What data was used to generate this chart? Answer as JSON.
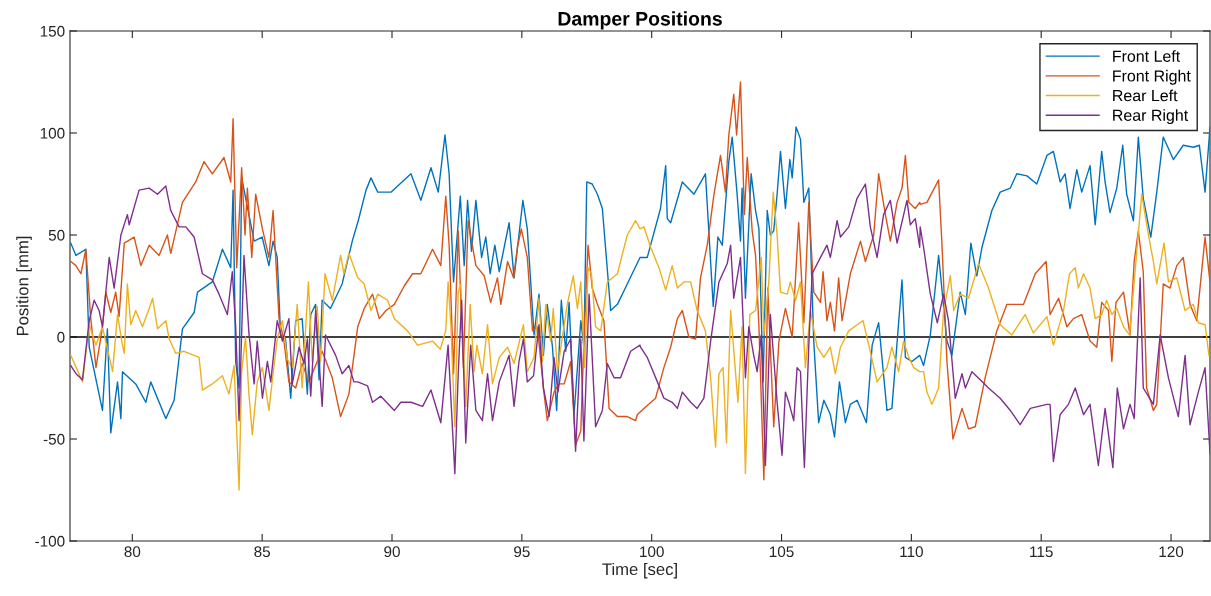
{
  "chart_data": {
    "type": "line",
    "title": "Damper Positions",
    "xlabel": "Time [sec]",
    "ylabel": "Position [mm]",
    "xlim": [
      77.6,
      121.5
    ],
    "ylim": [
      -100,
      150
    ],
    "xticks": [
      80,
      85,
      90,
      95,
      100,
      105,
      110,
      115,
      120
    ],
    "yticks": [
      -100,
      -50,
      0,
      50,
      100,
      150
    ],
    "grid": false,
    "legend": "top right",
    "marker": "none",
    "line_style": "solid",
    "ref_lines": [
      {
        "axis": "y",
        "value": 0,
        "color": "#000000"
      }
    ],
    "series": [
      {
        "name": "Front Left",
        "color": "#0072bd",
        "x": [
          77.63,
          77.83,
          78.21,
          78.34,
          78.85,
          79.04,
          79.17,
          79.43,
          79.56,
          79.62,
          80.13,
          80.52,
          80.71,
          81.29,
          81.61,
          81.93,
          82.38,
          82.51,
          83.08,
          83.47,
          83.79,
          83.88,
          83.98,
          84.11,
          84.21,
          84.49,
          84.69,
          85.0,
          85.26,
          85.42,
          85.58,
          85.71,
          85.9,
          86.1,
          86.29,
          86.54,
          86.74,
          86.87,
          87.06,
          87.19,
          87.31,
          87.63,
          88.08,
          88.47,
          88.7,
          89.0,
          89.19,
          89.45,
          89.96,
          90.73,
          91.11,
          91.5,
          91.78,
          92.04,
          92.2,
          92.37,
          92.63,
          92.78,
          92.91,
          93.06,
          93.23,
          93.45,
          93.61,
          93.78,
          93.96,
          94.13,
          94.51,
          94.7,
          95.04,
          95.21,
          95.47,
          95.66,
          95.83,
          95.98,
          96.18,
          96.34,
          96.52,
          96.69,
          96.82,
          97.01,
          97.27,
          97.39,
          97.5,
          97.71,
          97.91,
          98.1,
          98.42,
          98.68,
          99.06,
          99.55,
          99.83,
          100.34,
          100.54,
          100.6,
          100.73,
          101.18,
          101.63,
          102.07,
          102.37,
          102.55,
          102.72,
          102.97,
          103.1,
          103.29,
          103.42,
          103.48,
          103.61,
          103.83,
          104.0,
          104.13,
          104.29,
          104.45,
          104.57,
          104.7,
          104.83,
          104.96,
          105.15,
          105.32,
          105.41,
          105.56,
          105.73,
          105.86,
          106.05,
          106.24,
          106.43,
          106.63,
          106.88,
          107.04,
          107.23,
          107.46,
          107.65,
          107.91,
          108.27,
          108.49,
          108.74,
          109.06,
          109.25,
          109.64,
          109.77,
          110.02,
          110.32,
          110.47,
          110.73,
          111.05,
          111.37,
          111.56,
          111.88,
          112.08,
          112.29,
          112.52,
          112.72,
          113.1,
          113.42,
          113.81,
          114.06,
          114.45,
          114.83,
          115.22,
          115.47,
          115.73,
          115.92,
          116.11,
          116.37,
          116.56,
          116.88,
          117.08,
          117.33,
          117.46,
          117.65,
          117.91,
          118.14,
          118.29,
          118.55,
          118.74,
          118.93,
          119.22,
          119.45,
          119.7,
          120.09,
          120.47,
          120.86,
          121.09,
          121.31,
          121.5
        ],
        "values": [
          46,
          40,
          43,
          -5,
          -36,
          4,
          -47,
          -22,
          -40,
          -17,
          -23,
          -32,
          -22,
          -40,
          -31,
          4,
          12,
          22,
          27,
          43,
          34,
          72,
          -12,
          -25,
          78,
          60,
          47,
          49,
          35,
          47,
          39,
          1,
          -1,
          -30,
          8,
          9,
          -28,
          11,
          16,
          -21,
          18,
          14,
          26,
          47,
          57,
          72,
          78,
          71,
          71,
          80,
          67,
          83,
          71,
          99,
          80,
          27,
          69,
          35,
          67,
          42,
          67,
          39,
          49,
          31,
          45,
          32,
          56,
          29,
          67,
          53,
          1,
          21,
          -9,
          16,
          -5,
          -36,
          18,
          -7,
          17,
          -38,
          8,
          -5,
          76,
          75,
          70,
          63,
          13,
          16,
          26,
          39,
          39,
          63,
          84,
          58,
          56,
          76,
          70,
          80,
          15,
          49,
          45,
          86,
          98,
          70,
          47,
          73,
          19,
          80,
          62,
          53,
          -22,
          62,
          50,
          52,
          70,
          91,
          63,
          87,
          78,
          103,
          97,
          66,
          73,
          -2,
          -42,
          -31,
          -38,
          -49,
          -22,
          -42,
          -33,
          -31,
          -42,
          -4,
          7,
          -36,
          -35,
          28,
          -10,
          -12,
          -9,
          -14,
          1,
          40,
          -2,
          -9,
          22,
          11,
          46,
          30,
          44,
          62,
          71,
          73,
          80,
          79,
          75,
          89,
          91,
          76,
          80,
          63,
          82,
          71,
          84,
          55,
          91,
          76,
          61,
          73,
          94,
          70,
          57,
          98,
          68,
          49,
          71,
          98,
          87,
          94,
          93,
          94,
          71,
          103
        ]
      },
      {
        "name": "Front Right",
        "color": "#d95319",
        "x": [
          77.63,
          77.83,
          78.02,
          78.21,
          78.4,
          78.6,
          78.85,
          78.98,
          79.17,
          79.36,
          79.49,
          79.69,
          80.07,
          80.33,
          80.65,
          81.03,
          81.35,
          81.48,
          81.93,
          82.44,
          82.76,
          83.08,
          83.53,
          83.79,
          83.88,
          84.02,
          84.21,
          84.34,
          84.43,
          84.6,
          84.75,
          85.01,
          85.26,
          85.42,
          85.65,
          85.84,
          86.03,
          86.29,
          86.54,
          86.8,
          87.12,
          87.31,
          87.7,
          88.02,
          88.34,
          88.68,
          88.93,
          89.25,
          89.51,
          89.77,
          90.09,
          90.47,
          90.79,
          91.11,
          91.56,
          91.88,
          92.07,
          92.2,
          92.37,
          92.55,
          92.75,
          92.93,
          93.23,
          93.55,
          93.8,
          94.06,
          94.19,
          94.45,
          94.68,
          94.83,
          94.98,
          95.21,
          95.41,
          95.6,
          95.83,
          95.98,
          96.24,
          96.43,
          96.63,
          96.88,
          97.07,
          97.27,
          97.39,
          97.55,
          97.71,
          97.91,
          98.16,
          98.36,
          98.68,
          99.06,
          99.38,
          99.45,
          99.7,
          100.15,
          100.47,
          100.73,
          100.99,
          101.18,
          101.43,
          101.69,
          101.88,
          102.14,
          102.4,
          102.65,
          102.84,
          102.97,
          103.16,
          103.27,
          103.42,
          103.57,
          103.68,
          103.87,
          104.0,
          104.13,
          104.32,
          104.47,
          104.7,
          104.9,
          105.15,
          105.41,
          105.66,
          105.86,
          106.05,
          106.24,
          106.5,
          106.6,
          106.75,
          106.88,
          107.04,
          107.2,
          107.33,
          107.65,
          108.04,
          108.23,
          108.55,
          108.74,
          109.0,
          109.19,
          109.45,
          109.64,
          109.77,
          109.9,
          110.15,
          110.32,
          110.34,
          110.6,
          111.05,
          111.18,
          111.37,
          111.6,
          111.95,
          112.2,
          112.46,
          112.84,
          113.29,
          113.68,
          114.32,
          114.77,
          115.19,
          115.34,
          115.67,
          115.99,
          116.24,
          116.56,
          116.88,
          117.14,
          117.33,
          117.59,
          117.72,
          117.88,
          118.17,
          118.42,
          118.58,
          118.74,
          118.93,
          119.06,
          119.32,
          119.45,
          119.7,
          119.96,
          120.22,
          120.47,
          120.73,
          120.99,
          121.31,
          121.5
        ],
        "values": [
          37,
          35,
          31,
          43,
          9,
          -15,
          5,
          22,
          12,
          22,
          10,
          46,
          49,
          35,
          45,
          40,
          50,
          41,
          66,
          76,
          86,
          80,
          88,
          76,
          107,
          34,
          83,
          50,
          73,
          39,
          70,
          53,
          39,
          62,
          9,
          -2,
          -22,
          -25,
          -13,
          -22,
          -12,
          -7,
          -20,
          -39,
          -28,
          5,
          14,
          21,
          9,
          13,
          16,
          25,
          31,
          31,
          43,
          35,
          69,
          45,
          -18,
          52,
          -15,
          57,
          35,
          30,
          17,
          29,
          16,
          37,
          29,
          44,
          53,
          39,
          3,
          5,
          -25,
          -41,
          -27,
          -23,
          -23,
          -12,
          -53,
          -46,
          -2,
          45,
          24,
          16,
          8,
          -35,
          -39,
          -39,
          -41,
          -38,
          -35,
          -30,
          -15,
          -5,
          9,
          13,
          0,
          -1,
          29,
          45,
          70,
          89,
          71,
          99,
          119,
          99,
          125,
          60,
          88,
          52,
          40,
          5,
          -70,
          24,
          -44,
          -2,
          14,
          0,
          56,
          7,
          66,
          22,
          17,
          32,
          8,
          17,
          3,
          29,
          8,
          31,
          47,
          37,
          50,
          80,
          60,
          47,
          66,
          73,
          89,
          66,
          63,
          66,
          65,
          66,
          77,
          45,
          -12,
          -50,
          -35,
          -45,
          -44,
          -20,
          3,
          16,
          16,
          31,
          37,
          11,
          19,
          5,
          9,
          11,
          -2,
          -5,
          17,
          13,
          -12,
          17,
          22,
          1,
          37,
          52,
          32,
          -25,
          -36,
          -33,
          26,
          24,
          35,
          39,
          16,
          8,
          49,
          27
        ]
      },
      {
        "name": "Rear Left",
        "color": "#edb120",
        "x": [
          77.63,
          78.08,
          78.34,
          78.6,
          78.85,
          79.24,
          79.43,
          79.62,
          79.69,
          79.81,
          79.94,
          80.13,
          80.39,
          80.65,
          80.78,
          80.97,
          81.29,
          81.42,
          81.67,
          81.99,
          82.57,
          82.7,
          83.08,
          83.47,
          83.72,
          83.92,
          84.11,
          84.21,
          84.36,
          84.49,
          84.62,
          84.81,
          85.01,
          85.26,
          85.42,
          85.58,
          85.78,
          85.97,
          86.16,
          86.35,
          86.54,
          86.78,
          86.93,
          87.12,
          87.25,
          87.42,
          87.7,
          88.02,
          88.15,
          88.34,
          88.68,
          88.93,
          89.19,
          89.45,
          89.83,
          90.09,
          90.6,
          90.98,
          91.56,
          91.86,
          92.07,
          92.16,
          92.27,
          92.42,
          92.55,
          92.65,
          92.84,
          93.01,
          93.16,
          93.27,
          93.48,
          93.68,
          93.87,
          94.13,
          94.45,
          94.7,
          95.06,
          95.21,
          95.47,
          95.66,
          95.79,
          95.92,
          96.11,
          96.21,
          96.37,
          96.56,
          96.75,
          96.98,
          97.14,
          97.27,
          97.42,
          97.55,
          97.68,
          97.84,
          98.04,
          98.29,
          98.68,
          99.06,
          99.38,
          99.55,
          99.7,
          99.96,
          100.28,
          100.54,
          100.79,
          100.99,
          101.24,
          101.5,
          101.75,
          102.07,
          102.27,
          102.46,
          102.59,
          102.75,
          102.88,
          103.04,
          103.32,
          103.48,
          103.61,
          103.78,
          104.0,
          104.22,
          104.32,
          104.51,
          104.68,
          104.83,
          104.96,
          105.22,
          105.34,
          105.54,
          105.73,
          105.92,
          106.11,
          106.37,
          106.63,
          106.88,
          107.07,
          107.27,
          107.59,
          107.91,
          108.14,
          108.36,
          108.68,
          109.06,
          109.25,
          109.51,
          109.7,
          109.9,
          110.09,
          110.32,
          110.47,
          110.6,
          110.79,
          111.05,
          111.24,
          111.5,
          111.63,
          111.88,
          112.2,
          112.59,
          112.97,
          113.42,
          113.87,
          114.38,
          114.7,
          115.22,
          115.47,
          115.86,
          116.09,
          116.31,
          116.43,
          116.63,
          116.88,
          117.08,
          117.33,
          117.52,
          117.72,
          117.91,
          118.17,
          118.4,
          118.58,
          118.87,
          119.13,
          119.32,
          119.45,
          119.73,
          119.9,
          120.22,
          120.54,
          120.86,
          121.05,
          121.31,
          121.46
        ],
        "values": [
          -9,
          -22,
          6,
          -4,
          5,
          -17,
          11,
          -4,
          -8,
          26,
          6,
          13,
          5,
          14,
          19,
          4,
          8,
          -1,
          -8,
          -7,
          -10,
          -26,
          -23,
          -19,
          -28,
          -14,
          -75,
          -17,
          0,
          -28,
          -48,
          -22,
          -15,
          -36,
          -18,
          -1,
          8,
          -11,
          -15,
          16,
          -25,
          27,
          -12,
          15,
          -12,
          31,
          18,
          40,
          31,
          41,
          29,
          26,
          13,
          21,
          18,
          9,
          3,
          -4,
          -2,
          -6,
          3,
          27,
          5,
          -44,
          22,
          26,
          -34,
          16,
          -17,
          -4,
          -18,
          6,
          -23,
          -10,
          -5,
          -13,
          6,
          -17,
          -10,
          19,
          -12,
          16,
          -2,
          14,
          -17,
          0,
          16,
          30,
          14,
          27,
          -15,
          34,
          31,
          5,
          3,
          27,
          31,
          50,
          57,
          53,
          54,
          44,
          34,
          23,
          35,
          24,
          27,
          27,
          13,
          3,
          -20,
          -54,
          -18,
          -15,
          -52,
          13,
          -32,
          5,
          -67,
          11,
          13,
          39,
          1,
          27,
          71,
          50,
          22,
          21,
          27,
          18,
          27,
          -15,
          13,
          -5,
          -10,
          -5,
          -18,
          -5,
          3,
          6,
          8,
          -4,
          -22,
          -15,
          -5,
          -17,
          -2,
          -10,
          -15,
          -17,
          -17,
          -27,
          -33,
          -25,
          13,
          30,
          13,
          21,
          19,
          36,
          24,
          6,
          1,
          11,
          2,
          10,
          -4,
          13,
          31,
          34,
          24,
          31,
          24,
          9,
          11,
          18,
          11,
          14,
          5,
          1,
          27,
          70,
          50,
          37,
          26,
          46,
          27,
          29,
          13,
          16,
          7,
          6,
          -9
        ]
      },
      {
        "name": "Rear Right",
        "color": "#7e2f8e",
        "x": [
          77.63,
          77.83,
          78.08,
          78.34,
          78.53,
          78.72,
          78.85,
          79.11,
          79.3,
          79.56,
          79.81,
          79.88,
          80.26,
          80.65,
          80.97,
          81.29,
          81.48,
          81.8,
          82.06,
          82.38,
          82.7,
          83.08,
          83.34,
          83.66,
          83.85,
          83.98,
          84.11,
          84.3,
          84.49,
          84.69,
          84.81,
          85.01,
          85.2,
          85.33,
          85.58,
          85.78,
          86.03,
          86.16,
          86.42,
          86.61,
          86.74,
          86.87,
          87.06,
          87.31,
          87.44,
          87.83,
          88.08,
          88.34,
          88.53,
          88.68,
          89.06,
          89.25,
          89.57,
          90.09,
          90.34,
          90.73,
          91.18,
          91.5,
          91.88,
          92.16,
          92.42,
          92.55,
          92.68,
          92.84,
          93.03,
          93.23,
          93.48,
          93.68,
          93.87,
          94.13,
          94.51,
          94.7,
          94.89,
          95.06,
          95.21,
          95.45,
          95.66,
          95.83,
          96.05,
          96.24,
          96.39,
          96.63,
          96.88,
          97.07,
          97.27,
          97.39,
          97.59,
          97.84,
          98.1,
          98.29,
          98.55,
          98.8,
          99.19,
          99.55,
          99.57,
          99.83,
          100.22,
          100.47,
          100.79,
          100.99,
          101.18,
          101.5,
          101.75,
          102.01,
          102.27,
          102.59,
          102.91,
          103.04,
          103.16,
          103.42,
          103.61,
          103.74,
          103.93,
          104.06,
          104.22,
          104.38,
          104.57,
          104.83,
          105.02,
          105.15,
          105.28,
          105.47,
          105.6,
          105.73,
          105.88,
          106.05,
          106.18,
          106.5,
          106.75,
          106.88,
          107.14,
          107.27,
          107.59,
          107.91,
          108.23,
          108.42,
          108.68,
          108.93,
          109.19,
          109.45,
          109.83,
          109.96,
          110.15,
          110.32,
          110.34,
          110.47,
          110.73,
          111.0,
          111.24,
          111.43,
          111.69,
          111.95,
          112.08,
          112.33,
          112.65,
          112.97,
          113.42,
          113.81,
          114.19,
          114.58,
          115.22,
          115.34,
          115.47,
          115.73,
          116.05,
          116.31,
          116.63,
          116.88,
          117.2,
          117.46,
          117.76,
          117.93,
          118.17,
          118.42,
          118.58,
          118.81,
          118.93,
          119.32,
          119.58,
          119.9,
          120.28,
          120.54,
          120.73,
          121.05,
          121.31,
          121.5
        ],
        "values": [
          -14,
          -18,
          -21,
          8,
          18,
          13,
          5,
          39,
          24,
          50,
          60,
          55,
          72,
          73,
          70,
          74,
          62,
          54,
          54,
          49,
          31,
          28,
          21,
          11,
          32,
          5,
          -41,
          40,
          2,
          -23,
          -2,
          -30,
          -12,
          -22,
          8,
          -2,
          9,
          -23,
          -5,
          -13,
          -1,
          -29,
          13,
          -34,
          1,
          -9,
          -18,
          -14,
          -22,
          -22,
          -24,
          -32,
          -29,
          -36,
          -32,
          -32,
          -34,
          -26,
          -42,
          -4,
          -67,
          -18,
          18,
          -52,
          -4,
          -36,
          -41,
          -18,
          -41,
          -22,
          -9,
          -34,
          -12,
          -1,
          -22,
          -19,
          6,
          -25,
          -39,
          -10,
          -27,
          -7,
          -1,
          -56,
          -1,
          -51,
          21,
          -44,
          -36,
          -13,
          -20,
          -20,
          -7,
          -4,
          -5,
          -10,
          -22,
          -30,
          -32,
          -35,
          -27,
          -32,
          -35,
          -30,
          -2,
          27,
          36,
          45,
          19,
          39,
          -20,
          5,
          -9,
          -17,
          1,
          -63,
          11,
          -32,
          -58,
          -27,
          -32,
          -41,
          -15,
          -17,
          -64,
          -4,
          31,
          39,
          45,
          39,
          57,
          49,
          54,
          68,
          75,
          54,
          39,
          60,
          67,
          46,
          67,
          55,
          58,
          44,
          54,
          44,
          21,
          7,
          21,
          8,
          -30,
          -18,
          -25,
          -17,
          -21,
          -25,
          -30,
          -36,
          -43,
          -35,
          -33,
          -33,
          -61,
          -38,
          -33,
          -25,
          -38,
          -33,
          -63,
          -35,
          -64,
          -25,
          -45,
          -33,
          -40,
          29,
          -25,
          -33,
          1,
          -20,
          -39,
          -9,
          -43,
          -27,
          -15,
          -57
        ]
      }
    ]
  }
}
